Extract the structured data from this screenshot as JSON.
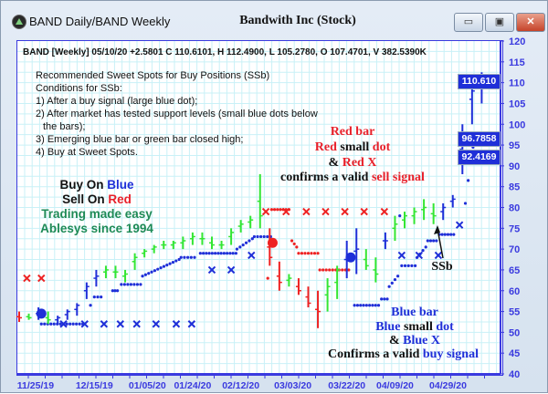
{
  "window": {
    "title": "BAND Daily/BAND Weekly",
    "document_title": "Bandwith Inc (Stock)",
    "buttons": {
      "minimize": "▭",
      "restore": "▣",
      "close": "✕"
    }
  },
  "header_line": "BAND [Weekly] 05/10/20  +2.5801 C 110.6101, H 112.4900, L 105.2780, O 107.4701, V 382.5390K",
  "notes": [
    "Recommended Sweet Spots for Buy Positions (SSb)",
    "Conditions for SSb:",
    "1) After a buy signal (large blue dot);",
    "2) After market has tested support levels (small blue dots below",
    "   the bars);",
    "3) Emerging blue bar or green bar closed high;",
    "4) Buy at Sweet Spots."
  ],
  "sell_legend": {
    "l1": {
      "a": "Red bar"
    },
    "l2": {
      "a": "Red",
      "b": " small ",
      "c": "dot"
    },
    "l3": {
      "a": "& ",
      "b": "Red X"
    },
    "l4": {
      "a": "confirms a valid ",
      "b": "sell signal"
    }
  },
  "buy_legend": {
    "l1": {
      "a": "Blue bar"
    },
    "l2": {
      "a": "Blue",
      "b": " small ",
      "c": "dot"
    },
    "l3": {
      "a": "& ",
      "b": "Blue X"
    },
    "l4": {
      "a": "Confirms a valid ",
      "b": "buy signal"
    }
  },
  "slogan": {
    "l1": {
      "a": "Buy On ",
      "b": "Blue"
    },
    "l2": {
      "a": "Sell On ",
      "b": "Red"
    },
    "l3": "Trading made easy",
    "l4": "Ablesys since 1994"
  },
  "ssb_label": "SSb",
  "price_boxes": [
    "110.610",
    "96.7858",
    "92.4169"
  ],
  "colors": {
    "blue": "#1f2fd8",
    "green": "#33e633",
    "red": "#ee2222",
    "grid": "#c9f1f7",
    "axis": "#3a3adf"
  },
  "chart_data": {
    "type": "bar",
    "subtype": "ohlc",
    "ylim": [
      40,
      120
    ],
    "y_ticks": [
      40,
      45,
      50,
      55,
      60,
      65,
      70,
      75,
      80,
      85,
      90,
      95,
      100,
      105,
      110,
      115,
      120
    ],
    "x_ticks": [
      {
        "label": "11/25/19",
        "bar": 1.7
      },
      {
        "label": "12/15/19",
        "bar": 7.8
      },
      {
        "label": "01/05/20",
        "bar": 13.3
      },
      {
        "label": "01/24/20",
        "bar": 18
      },
      {
        "label": "02/12/20",
        "bar": 23
      },
      {
        "label": "03/03/20",
        "bar": 28.4
      },
      {
        "label": "03/22/20",
        "bar": 34
      },
      {
        "label": "04/09/20",
        "bar": 39
      },
      {
        "label": "04/29/20",
        "bar": 44.5
      }
    ],
    "grid": true,
    "bars": [
      {
        "l": 52.5,
        "h": 55,
        "c": 53.5,
        "color": "red"
      },
      {
        "l": 53,
        "h": 54.5,
        "c": 53.5,
        "color": "green"
      },
      {
        "l": 53,
        "h": 56,
        "c": 55,
        "color": "blue"
      },
      {
        "l": 52,
        "h": 55,
        "c": 53,
        "color": "green"
      },
      {
        "l": 52,
        "h": 54,
        "c": 53.5,
        "color": "blue"
      },
      {
        "l": 53,
        "h": 55.5,
        "c": 55,
        "color": "blue"
      },
      {
        "l": 54,
        "h": 57,
        "c": 56.5,
        "color": "blue"
      },
      {
        "l": 58,
        "h": 62,
        "c": 61,
        "color": "blue"
      },
      {
        "l": 61,
        "h": 65,
        "c": 63.5,
        "color": "blue"
      },
      {
        "l": 63,
        "h": 66,
        "c": 65,
        "color": "green"
      },
      {
        "l": 63,
        "h": 66,
        "c": 64.5,
        "color": "green"
      },
      {
        "l": 62,
        "h": 65,
        "c": 64,
        "color": "green"
      },
      {
        "l": 65,
        "h": 69,
        "c": 68,
        "color": "green"
      },
      {
        "l": 68,
        "h": 70,
        "c": 69.5,
        "color": "green"
      },
      {
        "l": 69,
        "h": 71,
        "c": 70.5,
        "color": "green"
      },
      {
        "l": 70,
        "h": 72,
        "c": 71,
        "color": "green"
      },
      {
        "l": 70,
        "h": 72,
        "c": 71.5,
        "color": "green"
      },
      {
        "l": 70,
        "h": 73,
        "c": 72,
        "color": "green"
      },
      {
        "l": 71,
        "h": 74,
        "c": 73,
        "color": "green"
      },
      {
        "l": 71,
        "h": 74,
        "c": 72.5,
        "color": "green"
      },
      {
        "l": 70,
        "h": 73,
        "c": 71,
        "color": "green"
      },
      {
        "l": 70,
        "h": 72,
        "c": 71,
        "color": "green"
      },
      {
        "l": 71,
        "h": 75,
        "c": 74,
        "color": "green"
      },
      {
        "l": 74,
        "h": 77,
        "c": 76,
        "color": "green"
      },
      {
        "l": 75,
        "h": 78,
        "c": 77,
        "color": "green"
      },
      {
        "l": 75,
        "h": 88,
        "c": 78,
        "color": "green"
      },
      {
        "l": 66,
        "h": 75,
        "c": 68,
        "color": "red"
      },
      {
        "l": 60,
        "h": 67,
        "c": 62,
        "color": "red"
      },
      {
        "l": 61,
        "h": 64,
        "c": 63,
        "color": "green"
      },
      {
        "l": 59,
        "h": 63,
        "c": 60,
        "color": "red"
      },
      {
        "l": 56,
        "h": 61,
        "c": 57,
        "color": "red"
      },
      {
        "l": 51,
        "h": 60,
        "c": 55,
        "color": "red"
      },
      {
        "l": 55,
        "h": 63,
        "c": 61,
        "color": "green"
      },
      {
        "l": 58,
        "h": 66,
        "c": 65,
        "color": "green"
      },
      {
        "l": 63,
        "h": 72,
        "c": 68,
        "color": "blue"
      },
      {
        "l": 64,
        "h": 75,
        "c": 70,
        "color": "blue"
      },
      {
        "l": 65,
        "h": 70,
        "c": 66,
        "color": "green"
      },
      {
        "l": 62,
        "h": 68,
        "c": 64,
        "color": "green"
      },
      {
        "l": 70,
        "h": 74,
        "c": 72,
        "color": "blue"
      },
      {
        "l": 72,
        "h": 78,
        "c": 76,
        "color": "green"
      },
      {
        "l": 75,
        "h": 79,
        "c": 78,
        "color": "green"
      },
      {
        "l": 76,
        "h": 80,
        "c": 79,
        "color": "green"
      },
      {
        "l": 77,
        "h": 82,
        "c": 80,
        "color": "green"
      },
      {
        "l": 76,
        "h": 81,
        "c": 78,
        "color": "green"
      },
      {
        "l": 77,
        "h": 81,
        "c": 80,
        "color": "blue"
      },
      {
        "l": 80,
        "h": 83,
        "c": 82,
        "color": "blue"
      },
      {
        "l": 88,
        "h": 100,
        "c": 97,
        "color": "blue"
      },
      {
        "l": 100,
        "h": 112,
        "c": 108,
        "color": "blue"
      },
      {
        "l": 105,
        "h": 112.49,
        "c": 110.61,
        "color": "blue"
      }
    ],
    "signal_dots": [
      {
        "bar": 2.3,
        "price": 54.5,
        "color": "blue"
      },
      {
        "bar": 26.3,
        "price": 71.5,
        "color": "red"
      },
      {
        "bar": 34.4,
        "price": 68,
        "color": "blue"
      }
    ],
    "support_dots": [
      {
        "from": 2.3,
        "to": 6.6,
        "p0": 52,
        "p1": 52,
        "color": "blue"
      },
      {
        "from": 7.4,
        "to": 7.4,
        "p0": 56.5,
        "p1": 56.5,
        "color": "blue"
      },
      {
        "from": 7.8,
        "to": 8.5,
        "p0": 58.5,
        "p1": 58.5,
        "color": "blue"
      },
      {
        "from": 9.7,
        "to": 10.2,
        "p0": 60,
        "p1": 60,
        "color": "blue"
      },
      {
        "from": 10.6,
        "to": 12.6,
        "p0": 61.5,
        "p1": 61.5,
        "color": "blue"
      },
      {
        "from": 12.8,
        "to": 16.6,
        "p0": 63.5,
        "p1": 67.5,
        "color": "blue"
      },
      {
        "from": 16.8,
        "to": 18.2,
        "p0": 68,
        "p1": 68,
        "color": "blue"
      },
      {
        "from": 18.8,
        "to": 22.5,
        "p0": 69,
        "p1": 69,
        "color": "blue"
      },
      {
        "from": 22.6,
        "to": 24.2,
        "p0": 70,
        "p1": 72.5,
        "color": "blue"
      },
      {
        "from": 24.4,
        "to": 26.1,
        "p0": 73,
        "p1": 73,
        "color": "blue"
      },
      {
        "from": 25.8,
        "to": 25.8,
        "p0": 63,
        "p1": 63,
        "color": "red"
      },
      {
        "from": 26.2,
        "to": 28,
        "p0": 79.5,
        "p1": 79.5,
        "color": "red"
      },
      {
        "from": 28.3,
        "to": 28.8,
        "p0": 72,
        "p1": 70.5,
        "color": "red"
      },
      {
        "from": 29,
        "to": 31,
        "p0": 69,
        "p1": 69,
        "color": "red"
      },
      {
        "from": 31.2,
        "to": 34.2,
        "p0": 65,
        "p1": 65,
        "color": "red"
      },
      {
        "from": 34.8,
        "to": 37.3,
        "p0": 56.5,
        "p1": 56.5,
        "color": "blue"
      },
      {
        "from": 37.6,
        "to": 38.2,
        "p0": 58,
        "p1": 58,
        "color": "blue"
      },
      {
        "from": 38.4,
        "to": 39.3,
        "p0": 61,
        "p1": 63.5,
        "color": "blue"
      },
      {
        "from": 39.5,
        "to": 39.5,
        "p0": 78,
        "p1": 78,
        "color": "blue"
      },
      {
        "from": 39.7,
        "to": 41.1,
        "p0": 66,
        "p1": 66,
        "color": "blue"
      },
      {
        "from": 41.3,
        "to": 42.2,
        "p0": 68,
        "p1": 70.5,
        "color": "blue"
      },
      {
        "from": 42.4,
        "to": 43.3,
        "p0": 72,
        "p1": 72,
        "color": "blue"
      },
      {
        "from": 43.6,
        "to": 45.1,
        "p0": 73.5,
        "p1": 73.5,
        "color": "blue"
      },
      {
        "from": 46.3,
        "to": 46.3,
        "p0": 81,
        "p1": 81,
        "color": "blue"
      },
      {
        "from": 46.6,
        "to": 46.6,
        "p0": 86.5,
        "p1": 86.5,
        "color": "blue"
      },
      {
        "from": 47.1,
        "to": 47.1,
        "p0": 94.5,
        "p1": 94.5,
        "color": "blue"
      },
      {
        "from": 47.4,
        "to": 48,
        "p0": 97,
        "p1": 97,
        "color": "blue"
      }
    ],
    "x_markers": [
      {
        "bar": 0.8,
        "price": 63,
        "color": "red"
      },
      {
        "bar": 2.3,
        "price": 63,
        "color": "red"
      },
      {
        "bar": 25.6,
        "price": 79,
        "color": "red"
      },
      {
        "bar": 27.7,
        "price": 79,
        "color": "red"
      },
      {
        "bar": 29.8,
        "price": 79,
        "color": "red"
      },
      {
        "bar": 31.8,
        "price": 79,
        "color": "red"
      },
      {
        "bar": 33.8,
        "price": 79,
        "color": "red"
      },
      {
        "bar": 35.8,
        "price": 79,
        "color": "red"
      },
      {
        "bar": 37.9,
        "price": 79,
        "color": "red"
      },
      {
        "bar": 4.6,
        "price": 52,
        "color": "blue"
      },
      {
        "bar": 6.8,
        "price": 52,
        "color": "blue"
      },
      {
        "bar": 8.8,
        "price": 52,
        "color": "blue"
      },
      {
        "bar": 10.5,
        "price": 52,
        "color": "blue"
      },
      {
        "bar": 12.2,
        "price": 52,
        "color": "blue"
      },
      {
        "bar": 14.2,
        "price": 52,
        "color": "blue"
      },
      {
        "bar": 16.3,
        "price": 52,
        "color": "blue"
      },
      {
        "bar": 17.9,
        "price": 52,
        "color": "blue"
      },
      {
        "bar": 20,
        "price": 65,
        "color": "blue"
      },
      {
        "bar": 22,
        "price": 65,
        "color": "blue"
      },
      {
        "bar": 24.1,
        "price": 68.5,
        "color": "blue"
      },
      {
        "bar": 39.7,
        "price": 68.5,
        "color": "blue"
      },
      {
        "bar": 41.5,
        "price": 68.5,
        "color": "blue"
      },
      {
        "bar": 43.5,
        "price": 68.5,
        "color": "blue"
      },
      {
        "bar": 45.7,
        "price": 75.8,
        "color": "blue"
      },
      {
        "bar": 47.7,
        "price": 92.4,
        "color": "blue"
      }
    ],
    "last_values": [
      110.61,
      96.7858,
      92.4169
    ]
  }
}
